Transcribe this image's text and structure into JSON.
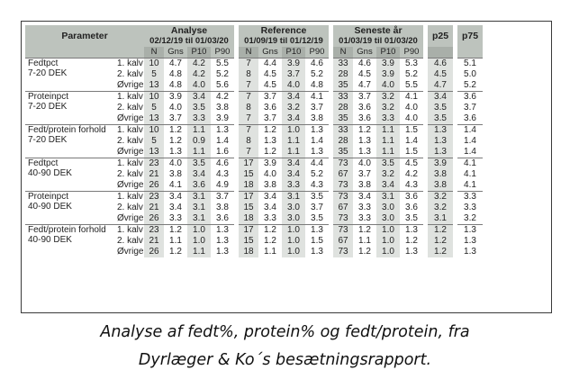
{
  "headers": {
    "parameter": "Parameter",
    "groups": [
      {
        "title": "Analyse",
        "dates": "02/12/19 til 01/03/20"
      },
      {
        "title": "Reference",
        "dates": "01/09/19 til 01/12/19"
      },
      {
        "title": "Seneste år",
        "dates": "01/03/19 til 01/03/20"
      }
    ],
    "p25": "p25",
    "p75": "p75",
    "sub": [
      "N",
      "Gns",
      "P10",
      "P90"
    ]
  },
  "blocks": [
    {
      "param": [
        "Fedtpct",
        "7-20 DEK"
      ],
      "rows": [
        {
          "kalv": "1. kalv",
          "a": [
            "10",
            "4.7",
            "4.2",
            "5.5"
          ],
          "r": [
            "7",
            "4.4",
            "3.9",
            "4.6"
          ],
          "s": [
            "33",
            "4.6",
            "3.9",
            "5.3"
          ],
          "p25": "4.6",
          "p75": "5.1"
        },
        {
          "kalv": "2. kalv",
          "a": [
            "5",
            "4.8",
            "4.2",
            "5.2"
          ],
          "r": [
            "8",
            "4.5",
            "3.7",
            "5.2"
          ],
          "s": [
            "28",
            "4.5",
            "3.9",
            "5.2"
          ],
          "p25": "4.5",
          "p75": "5.0"
        },
        {
          "kalv": "Øvrige",
          "a": [
            "13",
            "4.8",
            "4.0",
            "5.6"
          ],
          "r": [
            "7",
            "4.5",
            "4.0",
            "4.8"
          ],
          "s": [
            "35",
            "4.7",
            "4.0",
            "5.5"
          ],
          "p25": "4.7",
          "p75": "5.2"
        }
      ]
    },
    {
      "param": [
        "Proteinpct",
        "7-20 DEK"
      ],
      "rows": [
        {
          "kalv": "1. kalv",
          "a": [
            "10",
            "3.9",
            "3.4",
            "4.2"
          ],
          "r": [
            "7",
            "3.7",
            "3.4",
            "4.1"
          ],
          "s": [
            "33",
            "3.7",
            "3.2",
            "4.1"
          ],
          "p25": "3.4",
          "p75": "3.6"
        },
        {
          "kalv": "2. kalv",
          "a": [
            "5",
            "4.0",
            "3.5",
            "3.8"
          ],
          "r": [
            "8",
            "3.6",
            "3.2",
            "3.7"
          ],
          "s": [
            "28",
            "3.6",
            "3.2",
            "4.0"
          ],
          "p25": "3.5",
          "p75": "3.7"
        },
        {
          "kalv": "Øvrige",
          "a": [
            "13",
            "3.7",
            "3.3",
            "3.9"
          ],
          "r": [
            "7",
            "3.7",
            "3.4",
            "3.8"
          ],
          "s": [
            "35",
            "3.6",
            "3.3",
            "4.0"
          ],
          "p25": "3.5",
          "p75": "3.6"
        }
      ]
    },
    {
      "param": [
        "Fedt/protein forhold",
        "7-20 DEK"
      ],
      "rows": [
        {
          "kalv": "1. kalv",
          "a": [
            "10",
            "1.2",
            "1.1",
            "1.3"
          ],
          "r": [
            "7",
            "1.2",
            "1.0",
            "1.3"
          ],
          "s": [
            "33",
            "1.2",
            "1.1",
            "1.5"
          ],
          "p25": "1.3",
          "p75": "1.4"
        },
        {
          "kalv": "2. kalv",
          "a": [
            "5",
            "1.2",
            "0.9",
            "1.4"
          ],
          "r": [
            "8",
            "1.3",
            "1.1",
            "1.4"
          ],
          "s": [
            "28",
            "1.3",
            "1.1",
            "1.4"
          ],
          "p25": "1.3",
          "p75": "1.4"
        },
        {
          "kalv": "Øvrige",
          "a": [
            "13",
            "1.3",
            "1.1",
            "1.6"
          ],
          "r": [
            "7",
            "1.2",
            "1.1",
            "1.3"
          ],
          "s": [
            "35",
            "1.3",
            "1.1",
            "1.5"
          ],
          "p25": "1.3",
          "p75": "1.4"
        }
      ]
    },
    {
      "param": [
        "Fedtpct",
        "40-90 DEK"
      ],
      "rows": [
        {
          "kalv": "1. kalv",
          "a": [
            "23",
            "4.0",
            "3.5",
            "4.6"
          ],
          "r": [
            "17",
            "3.9",
            "3.4",
            "4.4"
          ],
          "s": [
            "73",
            "4.0",
            "3.5",
            "4.5"
          ],
          "p25": "3.9",
          "p75": "4.1"
        },
        {
          "kalv": "2. kalv",
          "a": [
            "21",
            "3.8",
            "3.4",
            "4.3"
          ],
          "r": [
            "15",
            "4.0",
            "3.4",
            "5.2"
          ],
          "s": [
            "67",
            "3.7",
            "3.2",
            "4.2"
          ],
          "p25": "3.8",
          "p75": "4.1"
        },
        {
          "kalv": "Øvrige",
          "a": [
            "26",
            "4.1",
            "3.6",
            "4.9"
          ],
          "r": [
            "18",
            "3.8",
            "3.3",
            "4.3"
          ],
          "s": [
            "73",
            "3.8",
            "3.4",
            "4.3"
          ],
          "p25": "3.8",
          "p75": "4.1"
        }
      ]
    },
    {
      "param": [
        "Proteinpct",
        "40-90 DEK"
      ],
      "rows": [
        {
          "kalv": "1. kalv",
          "a": [
            "23",
            "3.4",
            "3.1",
            "3.7"
          ],
          "r": [
            "17",
            "3.4",
            "3.1",
            "3.5"
          ],
          "s": [
            "73",
            "3.4",
            "3.1",
            "3.6"
          ],
          "p25": "3.2",
          "p75": "3.3"
        },
        {
          "kalv": "2. kalv",
          "a": [
            "21",
            "3.4",
            "3.1",
            "3.8"
          ],
          "r": [
            "15",
            "3.4",
            "3.0",
            "3.7"
          ],
          "s": [
            "67",
            "3.3",
            "3.0",
            "3.6"
          ],
          "p25": "3.2",
          "p75": "3.3"
        },
        {
          "kalv": "Øvrige",
          "a": [
            "26",
            "3.3",
            "3.1",
            "3.6"
          ],
          "r": [
            "18",
            "3.3",
            "3.0",
            "3.5"
          ],
          "s": [
            "73",
            "3.3",
            "3.0",
            "3.5"
          ],
          "p25": "3.1",
          "p75": "3.2"
        }
      ]
    },
    {
      "param": [
        "Fedt/protein forhold",
        "40-90 DEK"
      ],
      "rows": [
        {
          "kalv": "1. kalv",
          "a": [
            "23",
            "1.2",
            "1.0",
            "1.3"
          ],
          "r": [
            "17",
            "1.2",
            "1.0",
            "1.3"
          ],
          "s": [
            "73",
            "1.2",
            "1.0",
            "1.3"
          ],
          "p25": "1.2",
          "p75": "1.3"
        },
        {
          "kalv": "2. kalv",
          "a": [
            "21",
            "1.1",
            "1.0",
            "1.3"
          ],
          "r": [
            "15",
            "1.2",
            "1.0",
            "1.5"
          ],
          "s": [
            "67",
            "1.1",
            "1.0",
            "1.2"
          ],
          "p25": "1.2",
          "p75": "1.3"
        },
        {
          "kalv": "Øvrige",
          "a": [
            "26",
            "1.2",
            "1.1",
            "1.3"
          ],
          "r": [
            "18",
            "1.1",
            "1.0",
            "1.3"
          ],
          "s": [
            "73",
            "1.2",
            "1.0",
            "1.3"
          ],
          "p25": "1.2",
          "p75": "1.3"
        }
      ]
    }
  ],
  "caption": {
    "line1": "Analyse af fedt%, protein% og fedt/protein, fra",
    "line2": "Dyrlæger & Ko´s besætningsrapport."
  }
}
